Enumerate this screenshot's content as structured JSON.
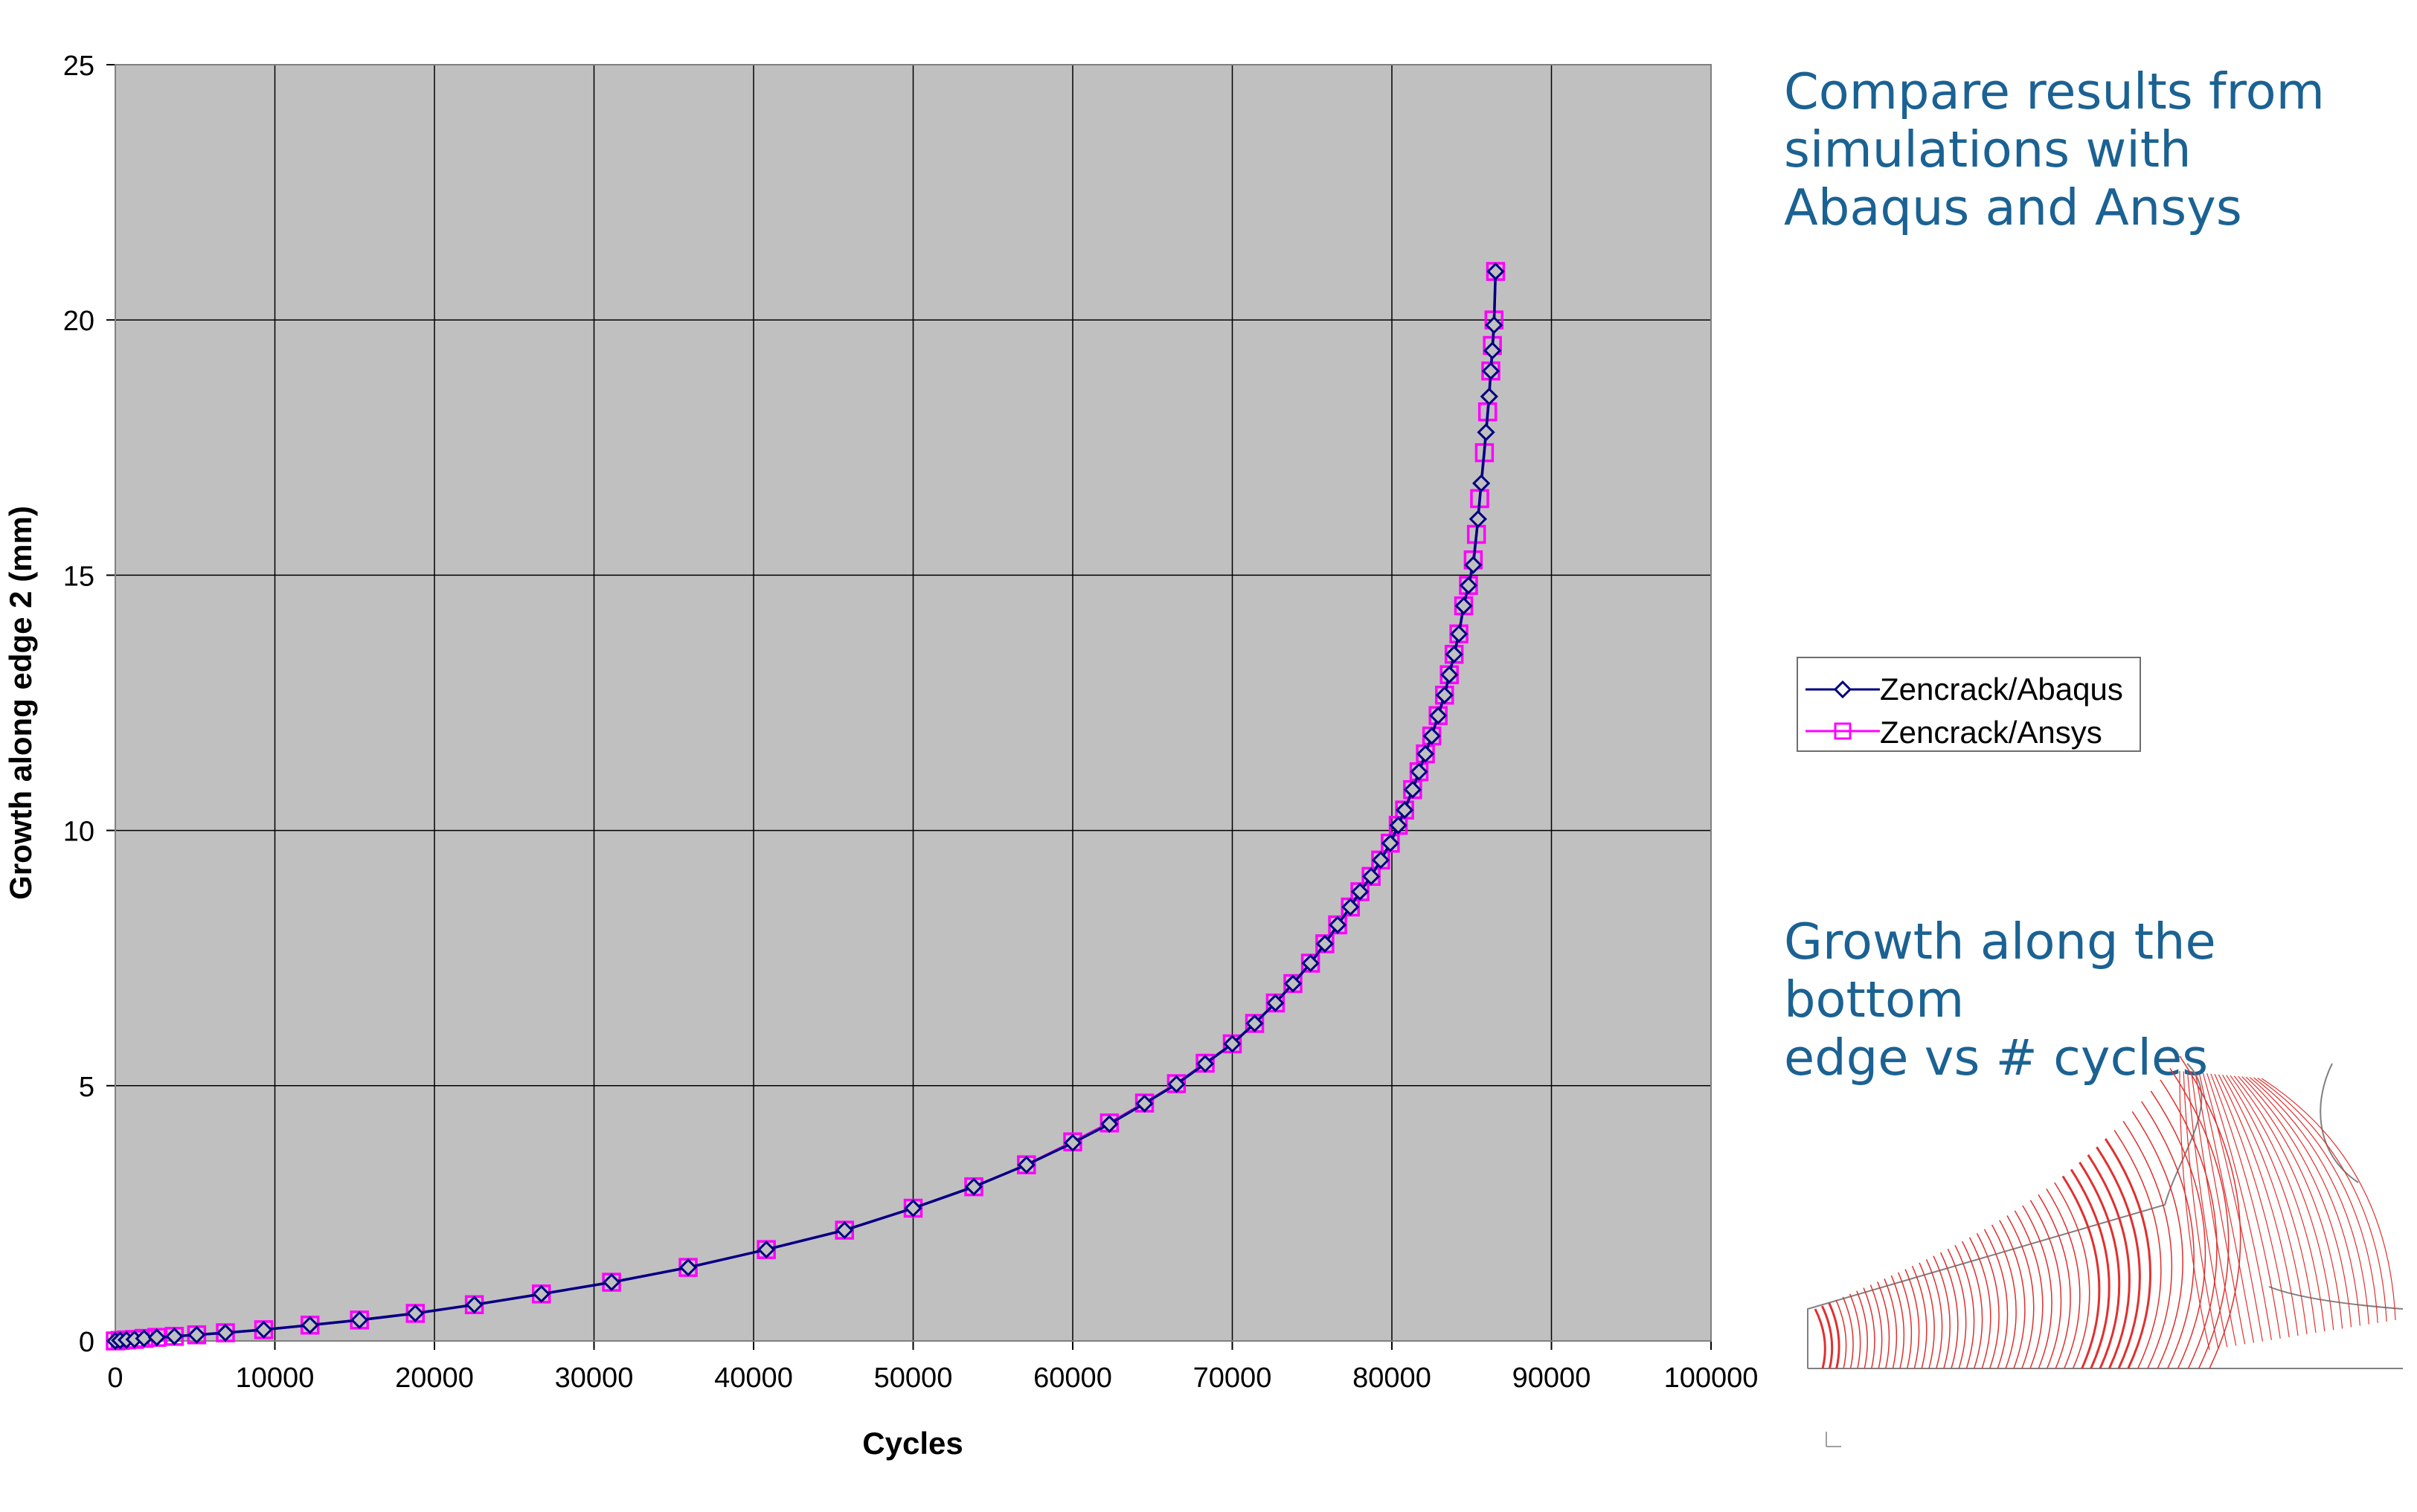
{
  "notes": {
    "compare": "Compare results from\nsimulations with\nAbaqus and Ansys",
    "growth": "Growth along the bottom\nedge vs # cycles"
  },
  "colors": {
    "plot_background": "#c0c0c0",
    "grid": "#000000",
    "abaqus": "#000080",
    "ansys": "#ff00ff",
    "note_text": "#1b6293",
    "mesh_lines": "#e03030"
  },
  "icons": {
    "fem_image": "crack-front-mesh-image"
  },
  "chart_data": {
    "type": "line",
    "title": "",
    "xlabel": "Cycles",
    "ylabel": "Growth along edge 2 (mm)",
    "xlim": [
      0,
      100000
    ],
    "ylim": [
      0,
      25
    ],
    "xticks": [
      "0",
      "10000",
      "20000",
      "30000",
      "40000",
      "50000",
      "60000",
      "70000",
      "80000",
      "90000",
      "100000"
    ],
    "yticks": [
      "0",
      "5",
      "10",
      "15",
      "20",
      "25"
    ],
    "grid": true,
    "legend_position": "right",
    "series": [
      {
        "name": "Zencrack/Abaqus",
        "marker": "diamond",
        "x": [
          0,
          300,
          700,
          1200,
          1800,
          2600,
          3700,
          5100,
          6900,
          9300,
          12200,
          15300,
          18800,
          22500,
          26700,
          31100,
          35900,
          40800,
          45700,
          50000,
          53800,
          57100,
          60000,
          62300,
          64500,
          66500,
          68300,
          70000,
          71400,
          72700,
          73800,
          74900,
          75800,
          76600,
          77400,
          78000,
          78700,
          79300,
          79900,
          80400,
          80800,
          81300,
          81700,
          82100,
          82500,
          82900,
          83300,
          83600,
          83900,
          84200,
          84500,
          84800,
          85100,
          85400,
          85600,
          85900,
          86100,
          86200,
          86300,
          86400,
          86500
        ],
        "y": [
          0.0,
          0.01,
          0.02,
          0.03,
          0.05,
          0.07,
          0.09,
          0.12,
          0.16,
          0.22,
          0.31,
          0.41,
          0.54,
          0.71,
          0.92,
          1.15,
          1.44,
          1.79,
          2.17,
          2.6,
          3.02,
          3.45,
          3.88,
          4.25,
          4.65,
          5.03,
          5.43,
          5.82,
          6.22,
          6.62,
          7.0,
          7.4,
          7.78,
          8.15,
          8.5,
          8.8,
          9.1,
          9.42,
          9.75,
          10.1,
          10.4,
          10.8,
          11.15,
          11.5,
          11.85,
          12.25,
          12.65,
          13.05,
          13.45,
          13.85,
          14.4,
          14.8,
          15.2,
          16.1,
          16.8,
          17.8,
          18.5,
          19.0,
          19.4,
          19.9,
          20.95
        ]
      },
      {
        "name": "Zencrack/Ansys",
        "marker": "square",
        "x": [
          0,
          300,
          700,
          1200,
          1800,
          2600,
          3700,
          5100,
          6900,
          9300,
          12200,
          15300,
          18800,
          22500,
          26700,
          31100,
          35900,
          40800,
          45700,
          50000,
          53800,
          57100,
          60000,
          62300,
          64500,
          66500,
          68300,
          70000,
          71400,
          72700,
          73800,
          74900,
          75800,
          76600,
          77400,
          78000,
          78700,
          79300,
          79900,
          80400,
          80800,
          81300,
          81700,
          82100,
          82500,
          82900,
          83300,
          83600,
          83900,
          84200,
          84500,
          84800,
          85100,
          85300,
          85500,
          85800,
          86000,
          86200,
          86300,
          86400,
          86500
        ],
        "y": [
          0.0,
          0.01,
          0.02,
          0.03,
          0.05,
          0.07,
          0.09,
          0.12,
          0.16,
          0.22,
          0.31,
          0.41,
          0.54,
          0.71,
          0.92,
          1.15,
          1.44,
          1.79,
          2.17,
          2.6,
          3.02,
          3.45,
          3.9,
          4.27,
          4.66,
          5.04,
          5.44,
          5.82,
          6.22,
          6.62,
          7.0,
          7.4,
          7.78,
          8.15,
          8.5,
          8.8,
          9.1,
          9.42,
          9.75,
          10.1,
          10.4,
          10.8,
          11.15,
          11.5,
          11.85,
          12.25,
          12.65,
          13.05,
          13.45,
          13.85,
          14.4,
          14.8,
          15.3,
          15.8,
          16.5,
          17.4,
          18.2,
          19.0,
          19.5,
          20.0,
          20.95
        ]
      }
    ]
  }
}
